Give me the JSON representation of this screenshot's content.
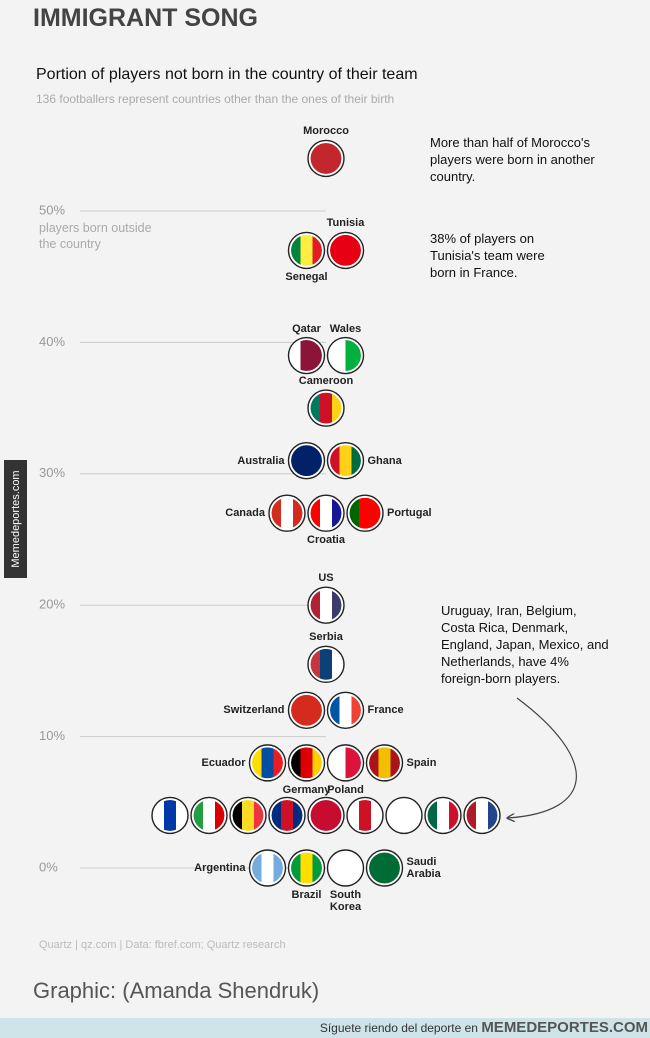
{
  "title": "IMMIGRANT SONG",
  "chart_data": {
    "type": "beeswarm",
    "title": "Portion of players not born in the country of their team",
    "subtitle": "136 footballers represent countries other than the ones of their birth",
    "y_label": "players born outside the country",
    "ylim": [
      0,
      50
    ],
    "yticks": [
      {
        "value": 0,
        "label": "0%"
      },
      {
        "value": 10,
        "label": "10%"
      },
      {
        "value": 20,
        "label": "20%"
      },
      {
        "value": 30,
        "label": "30%"
      },
      {
        "value": 40,
        "label": "40%"
      },
      {
        "value": 50,
        "label": "50%"
      }
    ],
    "grid": true,
    "categories": [
      "Morocco",
      "Senegal",
      "Tunisia",
      "Qatar",
      "Wales",
      "Cameroon",
      "Australia",
      "Ghana",
      "Canada",
      "Croatia",
      "Portugal",
      "US",
      "Serbia",
      "Switzerland",
      "France",
      "Ecuador",
      "Germany",
      "Poland",
      "Spain",
      null,
      null,
      null,
      null,
      null,
      null,
      null,
      null,
      null,
      "Argentina",
      "Brazil",
      "South Korea",
      "Saudi Arabia"
    ],
    "values": [
      54,
      47,
      47,
      39,
      39,
      35,
      31,
      31,
      27,
      27,
      27,
      20,
      15.5,
      12,
      12,
      8,
      8,
      8,
      8,
      4,
      4,
      4,
      4,
      4,
      4,
      4,
      4,
      4,
      0,
      0,
      0,
      0
    ],
    "colors": [
      [
        "#c1272d"
      ],
      [
        "#00853f",
        "#fdef42",
        "#e31b23"
      ],
      [
        "#e70013"
      ],
      [
        "#ffffff",
        "#8a1538",
        "#8a1538"
      ],
      [
        "#ffffff",
        "#00b140"
      ],
      [
        "#007a5e",
        "#ce1126",
        "#fcd116"
      ],
      [
        "#012169"
      ],
      [
        "#ce1126",
        "#fcd116",
        "#006b3f"
      ],
      [
        "#d52b1e",
        "#ffffff",
        "#d52b1e"
      ],
      [
        "#ff0000",
        "#ffffff",
        "#171796"
      ],
      [
        "#006600",
        "#ff0000",
        "#ff0000"
      ],
      [
        "#b22234",
        "#ffffff",
        "#3c3b6e"
      ],
      [
        "#c6363c",
        "#0c4076",
        "#ffffff"
      ],
      [
        "#d52b1e"
      ],
      [
        "#0055a4",
        "#ffffff",
        "#ef4135"
      ],
      [
        "#ffdd00",
        "#034ea2",
        "#ed1c24"
      ],
      [
        "#000000",
        "#dd0000",
        "#ffce00"
      ],
      [
        "#ffffff",
        "#dc143c"
      ],
      [
        "#aa151b",
        "#f1bf00",
        "#aa151b"
      ],
      [
        "#ffffff",
        "#0038a8",
        "#ffffff"
      ],
      [
        "#239f40",
        "#ffffff",
        "#da0000"
      ],
      [
        "#000000",
        "#fdda24",
        "#ef3340"
      ],
      [
        "#002b7f",
        "#ce1126",
        "#002b7f"
      ],
      [
        "#c60c30"
      ],
      [
        "#ffffff",
        "#ce1124",
        "#ffffff"
      ],
      [
        "#ffffff"
      ],
      [
        "#006847",
        "#ffffff",
        "#ce1126"
      ],
      [
        "#ae1c28",
        "#ffffff",
        "#21468b"
      ],
      [
        "#74acdf",
        "#ffffff",
        "#74acdf"
      ],
      [
        "#009c3b",
        "#ffdf00",
        "#009c3b"
      ],
      [
        "#ffffff"
      ],
      [
        "#006c35"
      ]
    ],
    "annotations": [
      "More than half of Morocco's players were born in another country.",
      "38% of players on Tunisia's team were born in France.",
      "Uruguay, Iran, Belgium, Costa Rica, Denmark, England, Japan, Mexico, and Netherlands, have 4% foreign-born players."
    ],
    "source": "Quartz | qz.com | Data: fbref.com; Quartz research"
  },
  "credit": "Graphic: (Amanda Shendruk)",
  "watermark": "Memedeportes.com",
  "footer": {
    "text": "Síguete riendo del deporte en",
    "brand": "MEMEDEPORTES.COM"
  }
}
